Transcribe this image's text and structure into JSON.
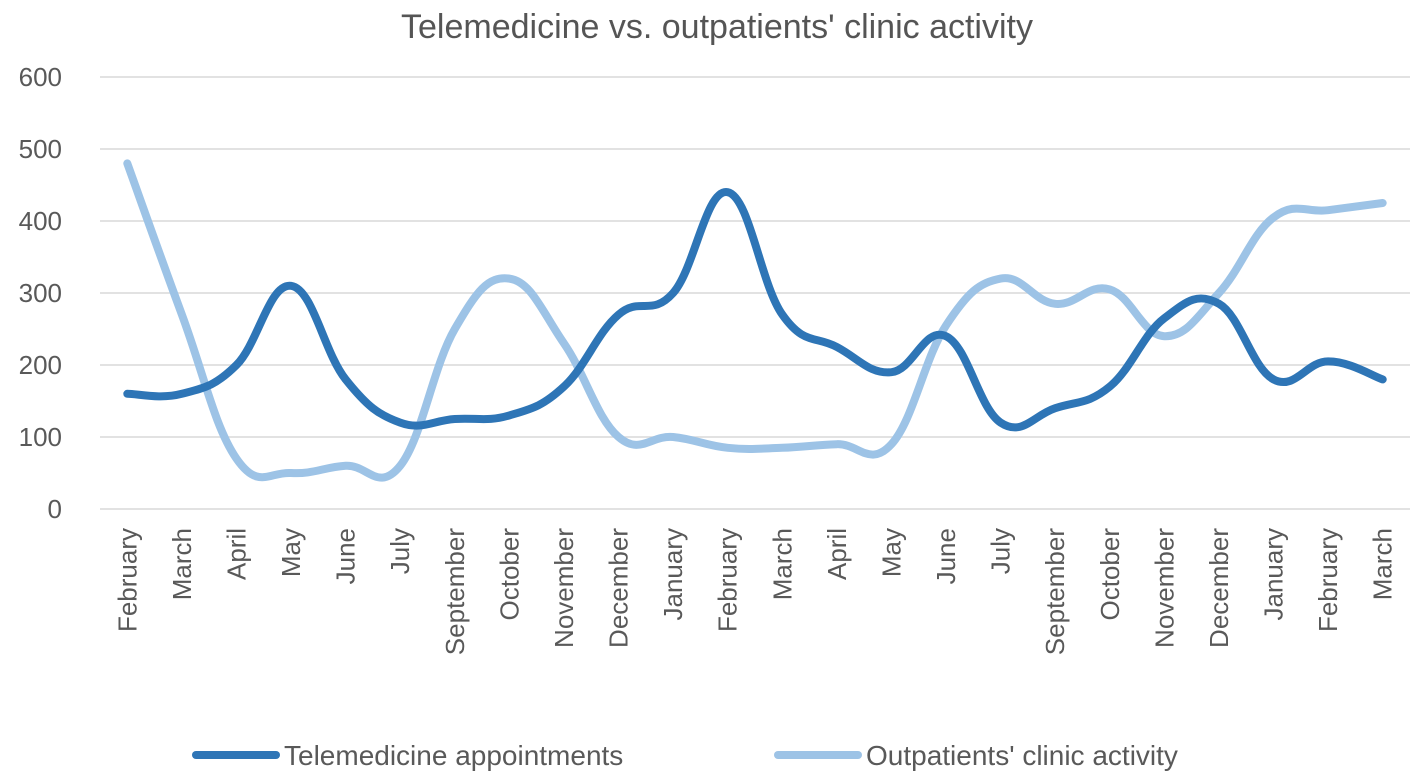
{
  "chart_data": {
    "type": "line",
    "title": "Telemedicine vs. outpatients' clinic activity",
    "xlabel": "",
    "ylabel": "",
    "ylim": [
      0,
      600
    ],
    "yticks": [
      "0",
      "100",
      "200",
      "300",
      "400",
      "500",
      "600"
    ],
    "grid": true,
    "legend_position": "bottom",
    "categories": [
      "February",
      "March",
      "April",
      "May",
      "June",
      "July",
      "September",
      "October",
      "November",
      "December",
      "January",
      "February",
      "March",
      "April",
      "May",
      "June",
      "July",
      "September",
      "October",
      "November",
      "December",
      "January",
      "February",
      "March"
    ],
    "series": [
      {
        "name": "Telemedicine appointments",
        "color": "#2e75b6",
        "values": [
          160,
          160,
          200,
          310,
          180,
          120,
          125,
          130,
          170,
          270,
          300,
          440,
          270,
          225,
          190,
          240,
          120,
          140,
          170,
          265,
          285,
          180,
          205,
          180
        ]
      },
      {
        "name": "Outpatients' clinic activity",
        "color": "#9dc3e6",
        "values": [
          480,
          270,
          70,
          50,
          60,
          60,
          250,
          320,
          230,
          100,
          100,
          85,
          85,
          90,
          90,
          255,
          320,
          285,
          305,
          240,
          300,
          405,
          415,
          425
        ]
      }
    ]
  }
}
